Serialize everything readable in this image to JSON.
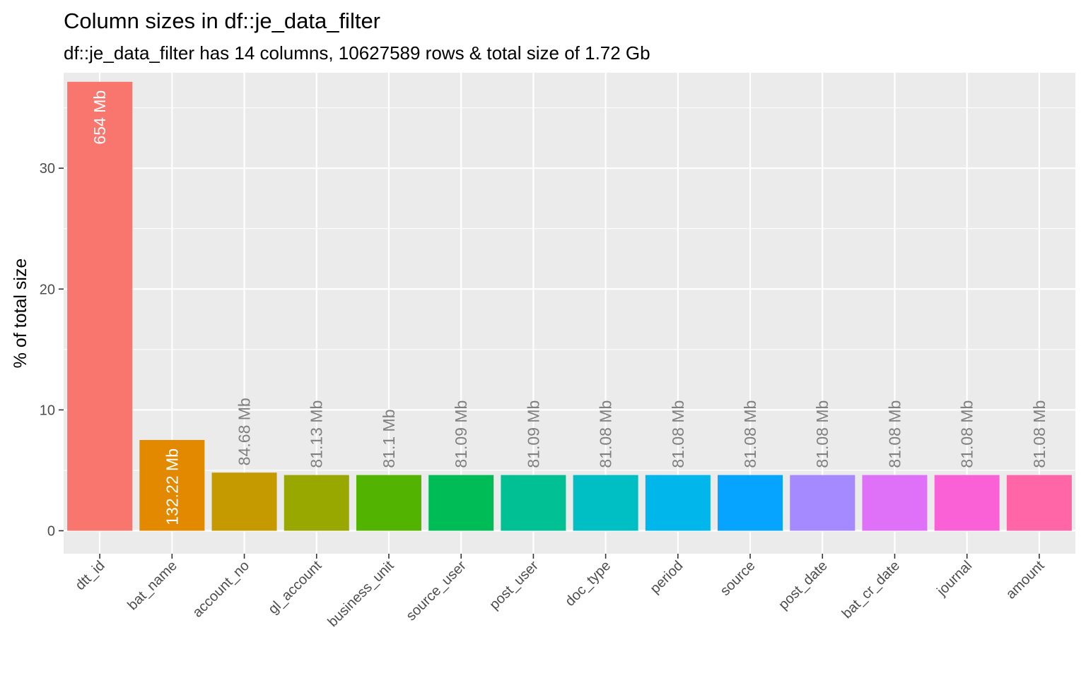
{
  "chart_data": {
    "type": "bar",
    "title": "Column sizes in df::je_data_filter",
    "subtitle": "df::je_data_filter has 14 columns, 10627589 rows & total size of 1.72 Gb",
    "xlabel": "",
    "ylabel": "% of total size",
    "ylim": [
      -1.9,
      37.9
    ],
    "yticks": [
      0,
      10,
      20,
      30
    ],
    "grid": true,
    "legend": "none",
    "categories": [
      "dtt_id",
      "bat_name",
      "account_no",
      "gl_account",
      "business_unit",
      "source_user",
      "post_user",
      "doc_type",
      "period",
      "source",
      "post_date",
      "bat_cr_date",
      "journal",
      "amount"
    ],
    "values": [
      37.15,
      7.51,
      4.81,
      4.61,
      4.61,
      4.61,
      4.61,
      4.61,
      4.61,
      4.61,
      4.61,
      4.61,
      4.61,
      4.61
    ],
    "labels": [
      "654 Mb",
      "132.22 Mb",
      "84.68 Mb",
      "81.13 Mb",
      "81.1 Mb",
      "81.09 Mb",
      "81.09 Mb",
      "81.08 Mb",
      "81.08 Mb",
      "81.08 Mb",
      "81.08 Mb",
      "81.08 Mb",
      "81.08 Mb",
      "81.08 Mb"
    ],
    "colors": [
      "#F8766D",
      "#E38900",
      "#C49A00",
      "#99A800",
      "#53B400",
      "#00BC56",
      "#00C094",
      "#00BFC4",
      "#00B6EB",
      "#06A4FF",
      "#A58AFF",
      "#DF70F8",
      "#FB61D7",
      "#FF66A8"
    ],
    "panel_color": "#EBEBEB",
    "grid_color": "#FFFFFF",
    "inside_label_color": "#FFFFFF",
    "outside_label_color": "#808080"
  }
}
